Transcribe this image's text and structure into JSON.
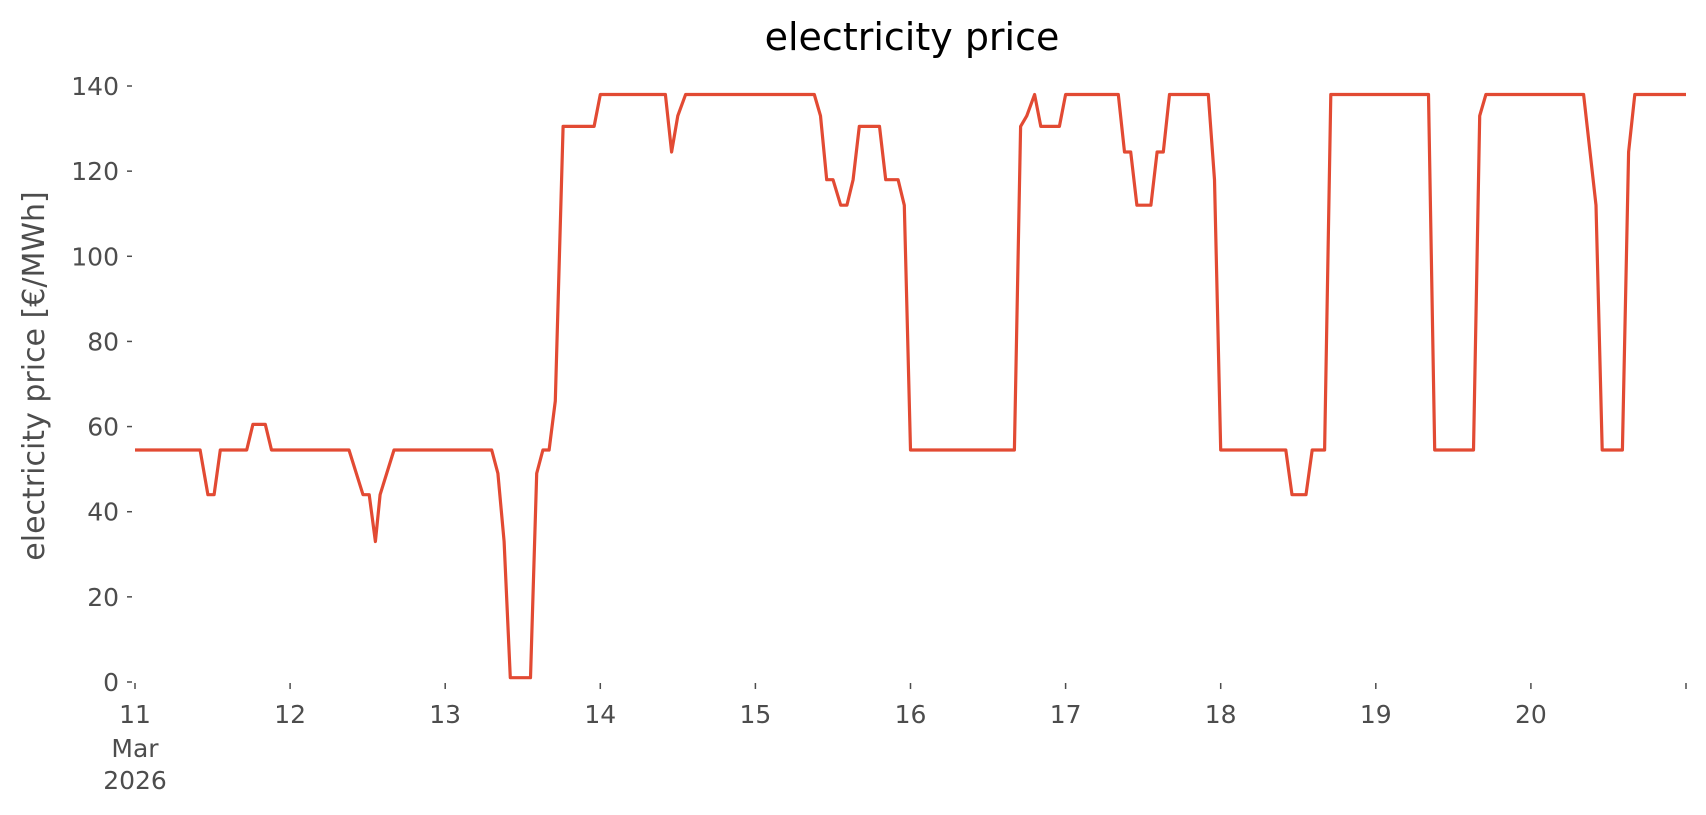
{
  "chart_data": {
    "type": "line",
    "title": "electricity price",
    "ylabel": "electricity price [€/MWh]",
    "xlabel": "",
    "ylim": [
      0,
      140
    ],
    "xlim_days": [
      0,
      10
    ],
    "grid": false,
    "colors": {
      "line": "#e24a33"
    },
    "y_ticks": [
      "0",
      "20",
      "40",
      "60",
      "80",
      "100",
      "120",
      "140"
    ],
    "x_ticks": [
      {
        "label": "11",
        "sub": [
          "Mar",
          "2026"
        ]
      },
      {
        "label": "12"
      },
      {
        "label": "13"
      },
      {
        "label": "14"
      },
      {
        "label": "15"
      },
      {
        "label": "16"
      },
      {
        "label": "17"
      },
      {
        "label": "18"
      },
      {
        "label": "19"
      },
      {
        "label": "20"
      },
      {
        "label": ""
      }
    ],
    "series": [
      {
        "points": [
          [
            0.0,
            54.5
          ],
          [
            0.42,
            54.5
          ],
          [
            0.47,
            44.0
          ],
          [
            0.51,
            44.0
          ],
          [
            0.55,
            54.5
          ],
          [
            0.72,
            54.5
          ],
          [
            0.76,
            60.5
          ],
          [
            0.84,
            60.5
          ],
          [
            0.88,
            54.5
          ],
          [
            1.38,
            54.5
          ],
          [
            1.47,
            44.0
          ],
          [
            1.51,
            44.0
          ],
          [
            1.55,
            33.0
          ],
          [
            1.58,
            44.0
          ],
          [
            1.67,
            54.5
          ],
          [
            2.3,
            54.5
          ],
          [
            2.34,
            49.0
          ],
          [
            2.38,
            33.0
          ],
          [
            2.42,
            1.0
          ],
          [
            2.55,
            1.0
          ],
          [
            2.59,
            49.0
          ],
          [
            2.63,
            54.5
          ],
          [
            2.67,
            54.5
          ],
          [
            2.71,
            66.0
          ],
          [
            2.76,
            130.5
          ],
          [
            2.96,
            130.5
          ],
          [
            3.0,
            138.0
          ],
          [
            3.42,
            138.0
          ],
          [
            3.46,
            124.5
          ],
          [
            3.5,
            133.0
          ],
          [
            3.55,
            138.0
          ],
          [
            4.38,
            138.0
          ],
          [
            4.42,
            133.0
          ],
          [
            4.46,
            118.0
          ],
          [
            4.5,
            118.0
          ],
          [
            4.55,
            112.0
          ],
          [
            4.59,
            112.0
          ],
          [
            4.63,
            118.0
          ],
          [
            4.67,
            130.5
          ],
          [
            4.8,
            130.5
          ],
          [
            4.84,
            118.0
          ],
          [
            4.92,
            118.0
          ],
          [
            4.96,
            112.0
          ],
          [
            5.0,
            54.5
          ],
          [
            5.67,
            54.5
          ],
          [
            5.71,
            130.5
          ],
          [
            5.75,
            133.0
          ],
          [
            5.8,
            138.0
          ],
          [
            5.84,
            130.5
          ],
          [
            5.96,
            130.5
          ],
          [
            6.0,
            138.0
          ],
          [
            6.34,
            138.0
          ],
          [
            6.38,
            124.5
          ],
          [
            6.42,
            124.5
          ],
          [
            6.46,
            112.0
          ],
          [
            6.55,
            112.0
          ],
          [
            6.59,
            124.5
          ],
          [
            6.63,
            124.5
          ],
          [
            6.67,
            138.0
          ],
          [
            6.92,
            138.0
          ],
          [
            6.96,
            118.0
          ],
          [
            7.0,
            54.5
          ],
          [
            7.42,
            54.5
          ],
          [
            7.46,
            44.0
          ],
          [
            7.55,
            44.0
          ],
          [
            7.59,
            54.5
          ],
          [
            7.67,
            54.5
          ],
          [
            7.71,
            138.0
          ],
          [
            8.34,
            138.0
          ],
          [
            8.38,
            54.5
          ],
          [
            8.63,
            54.5
          ],
          [
            8.67,
            133.0
          ],
          [
            8.71,
            138.0
          ],
          [
            9.34,
            138.0
          ],
          [
            9.42,
            112.0
          ],
          [
            9.46,
            54.5
          ],
          [
            9.59,
            54.5
          ],
          [
            9.63,
            124.5
          ],
          [
            9.67,
            138.0
          ],
          [
            10.0,
            138.0
          ]
        ]
      }
    ]
  }
}
